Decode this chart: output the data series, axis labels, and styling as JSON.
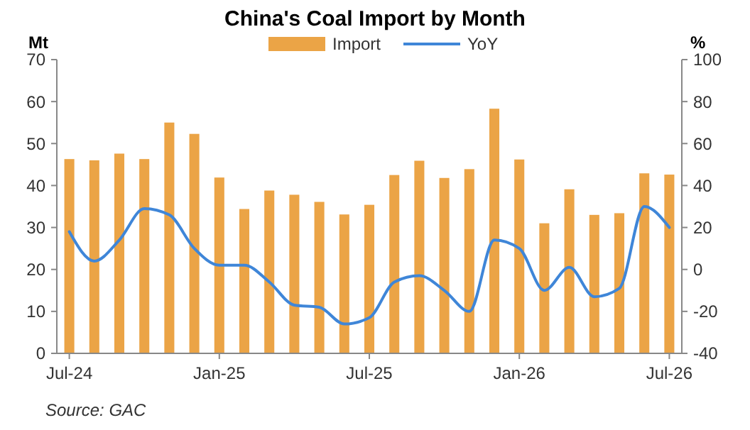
{
  "chart_data": {
    "type": "bar",
    "title": "China's Coal Import by Month",
    "ylabel": "Mt",
    "y2label": "%",
    "categories": [
      "Jul-24",
      null,
      null,
      null,
      null,
      null,
      "Jan-25",
      null,
      null,
      null,
      null,
      null,
      "Jul-25",
      null,
      null,
      null,
      null,
      null,
      "Jan-26",
      null,
      null,
      null,
      null,
      null,
      "Jul-26"
    ],
    "series": [
      {
        "name": "Import",
        "color": "#eba446",
        "values": [
          46.3,
          46,
          47.6,
          46.3,
          55,
          52.3,
          41.9,
          34.4,
          38.8,
          37.8,
          36.1,
          33.1,
          35.4,
          42.5,
          45.9,
          41.8,
          43.9,
          58.3,
          46.2,
          31,
          39.1,
          33,
          33.4,
          42.9,
          42.6
        ]
      },
      {
        "name": "YoY",
        "type": "line",
        "axis": "y2",
        "color": "#3f86d8",
        "values": [
          18,
          4,
          14,
          29,
          26,
          10,
          2,
          2,
          -6,
          -17,
          -18,
          -26,
          -23,
          -6,
          -3,
          -10,
          -20,
          14,
          10,
          -10,
          1,
          -13,
          -9,
          30,
          20
        ]
      }
    ],
    "ylim": [
      0,
      70
    ],
    "yticks": [
      0,
      10,
      20,
      30,
      40,
      50,
      60,
      70
    ],
    "y2lim": [
      -40,
      100
    ],
    "y2ticks": [
      -40,
      -20,
      0,
      20,
      40,
      60,
      80,
      100
    ],
    "legend": "top",
    "grid": false,
    "annotations": [
      "Source: GAC"
    ]
  }
}
